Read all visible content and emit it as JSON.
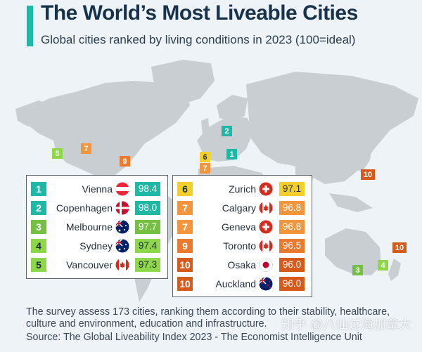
{
  "header": {
    "title": "The World’s Most Liveable Cities",
    "subtitle": "Global cities ranked by living conditions in 2023 (100=ideal)"
  },
  "chart_data": {
    "type": "table",
    "title": "The World’s Most Liveable Cities",
    "subtitle": "Global cities ranked by living conditions in 2023 (100=ideal)",
    "categories": [
      "Vienna",
      "Copenhagen",
      "Melbourne",
      "Sydney",
      "Vancouver",
      "Zurich",
      "Calgary",
      "Geneva",
      "Toronto",
      "Osaka",
      "Auckland"
    ],
    "values": [
      98.4,
      98.0,
      97.7,
      97.4,
      97.3,
      97.1,
      96.8,
      96.8,
      96.5,
      96.0,
      96.0
    ],
    "rows": [
      {
        "rank": "1",
        "city": "Vienna",
        "score": "98.4",
        "flag": "austria-flag"
      },
      {
        "rank": "2",
        "city": "Copenhagen",
        "score": "98.0",
        "flag": "denmark-flag"
      },
      {
        "rank": "3",
        "city": "Melbourne",
        "score": "97.7",
        "flag": "australia-flag"
      },
      {
        "rank": "4",
        "city": "Sydney",
        "score": "97.4",
        "flag": "australia-flag"
      },
      {
        "rank": "5",
        "city": "Vancouver",
        "score": "97.3",
        "flag": "canada-flag"
      },
      {
        "rank": "6",
        "city": "Zurich",
        "score": "97.1",
        "flag": "switzerland-flag"
      },
      {
        "rank": "7",
        "city": "Calgary",
        "score": "96.8",
        "flag": "canada-flag"
      },
      {
        "rank": "7",
        "city": "Geneva",
        "score": "96.8",
        "flag": "switzerland-flag"
      },
      {
        "rank": "9",
        "city": "Toronto",
        "score": "96.5",
        "flag": "canada-flag"
      },
      {
        "rank": "10",
        "city": "Osaka",
        "score": "96.0",
        "flag": "japan-flag"
      },
      {
        "rank": "10",
        "city": "Auckland",
        "score": "96.0",
        "flag": "new-zealand-flag"
      }
    ],
    "rank_colors": {
      "1": "#1fb7a6",
      "2": "#1fb7a6",
      "3": "#74c043",
      "4": "#8ed64a",
      "5": "#8ed64a",
      "6": "#f2cf2a",
      "7": "#f3953d",
      "9": "#ec7a2e",
      "10": "#d65a1c"
    }
  },
  "map_markers": [
    {
      "rank": "1",
      "city": "Vienna"
    },
    {
      "rank": "2",
      "city": "Copenhagen"
    },
    {
      "rank": "3",
      "city": "Melbourne"
    },
    {
      "rank": "4",
      "city": "Sydney"
    },
    {
      "rank": "5",
      "city": "Vancouver"
    },
    {
      "rank": "6",
      "city": "Zurich"
    },
    {
      "rank": "7",
      "city": "Calgary"
    },
    {
      "rank": "7",
      "city": "Geneva"
    },
    {
      "rank": "9",
      "city": "Toronto"
    },
    {
      "rank": "10",
      "city": "Osaka"
    },
    {
      "rank": "10",
      "city": "Auckland"
    }
  ],
  "footer": {
    "note": "The survey assess 173 cities, ranking them according to their stability, healthcare, culture and environment, education and infrastructure.",
    "source": "Source: The Global Liveability Index 2023 - The Economist Intelligence Unit",
    "watermark": "知乎 @八仙过海加拿大"
  }
}
